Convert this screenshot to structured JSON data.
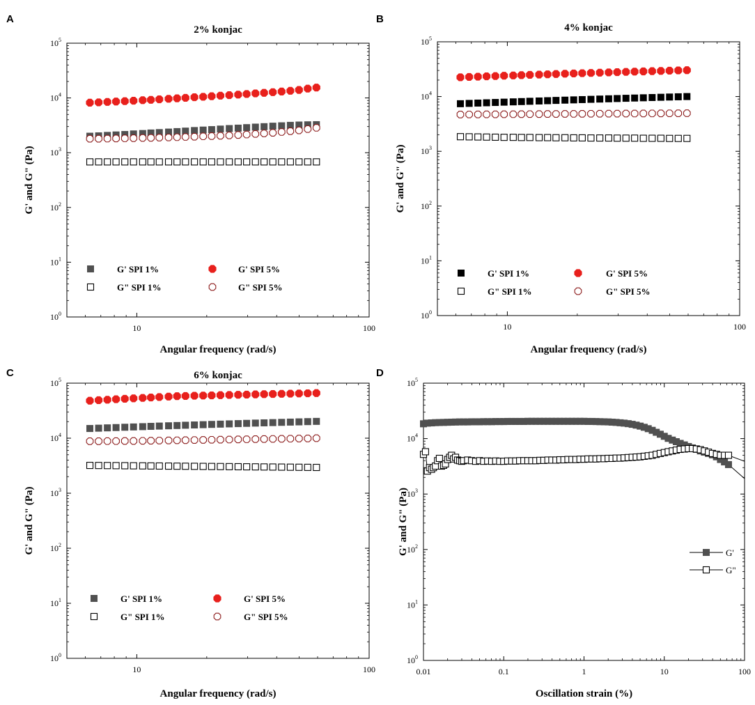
{
  "chart_data": [
    {
      "panel": "A",
      "type": "scatter",
      "title": "2% konjac",
      "xlabel": "Angular frequency (rad/s)",
      "ylabel": "G' and G\" (Pa)",
      "xscale": "log",
      "yscale": "log",
      "xlim": [
        5,
        100
      ],
      "ylim": [
        1,
        100000
      ],
      "xticks": [
        10,
        100
      ],
      "xtick_labels": [
        "10",
        "100"
      ],
      "ytick_base": "10",
      "ytick_exponents": [
        "0",
        "1",
        "2",
        "3",
        "4",
        "5"
      ],
      "legend_position": "lower-left",
      "x": [
        6.28,
        6.85,
        7.47,
        8.14,
        8.88,
        9.68,
        10.6,
        11.5,
        12.5,
        13.7,
        14.9,
        16.2,
        17.7,
        19.3,
        21.0,
        22.9,
        25.0,
        27.3,
        29.7,
        32.4,
        35.3,
        38.5,
        42.0,
        45.8,
        49.9,
        54.4,
        59.3
      ],
      "series": [
        {
          "name": "G' SPI 1%",
          "marker": "filled-square",
          "color": "#505050",
          "values": [
            2000,
            2030,
            2070,
            2110,
            2150,
            2200,
            2240,
            2290,
            2330,
            2380,
            2430,
            2480,
            2540,
            2590,
            2640,
            2700,
            2760,
            2810,
            2870,
            2930,
            2990,
            3050,
            3100,
            3160,
            3200,
            3230,
            3250
          ]
        },
        {
          "name": "G\" SPI 1%",
          "marker": "open-square",
          "color": "#000000",
          "values": [
            680,
            680,
            680,
            680,
            680,
            680,
            680,
            680,
            680,
            680,
            680,
            680,
            680,
            680,
            680,
            680,
            680,
            680,
            680,
            680,
            680,
            680,
            680,
            680,
            680,
            680,
            680
          ]
        },
        {
          "name": "G' SPI 5%",
          "marker": "filled-circle",
          "color": "#e8201c",
          "values": [
            8200,
            8300,
            8450,
            8600,
            8750,
            8900,
            9100,
            9250,
            9450,
            9650,
            9850,
            10050,
            10300,
            10500,
            10750,
            11000,
            11250,
            11500,
            11800,
            12100,
            12400,
            12750,
            13100,
            13500,
            14000,
            14800,
            15500
          ]
        },
        {
          "name": "G\" SPI 5%",
          "marker": "open-diamond",
          "color": "#8b1a1a",
          "values": [
            1800,
            1800,
            1810,
            1820,
            1830,
            1840,
            1860,
            1870,
            1890,
            1900,
            1920,
            1940,
            1960,
            1990,
            2010,
            2040,
            2070,
            2110,
            2150,
            2200,
            2250,
            2310,
            2390,
            2470,
            2560,
            2700,
            2850
          ]
        }
      ]
    },
    {
      "panel": "B",
      "type": "scatter",
      "title": "4% konjac",
      "xlabel": "Angular frequency (rad/s)",
      "ylabel": "G' and G\" (Pa)",
      "xscale": "log",
      "yscale": "log",
      "xlim": [
        5,
        100
      ],
      "ylim": [
        1,
        100000
      ],
      "xticks": [
        10,
        100
      ],
      "xtick_labels": [
        "10",
        "100"
      ],
      "ytick_base": "10",
      "ytick_exponents": [
        "0",
        "1",
        "2",
        "3",
        "4",
        "5"
      ],
      "legend_position": "lower-left",
      "x": [
        6.28,
        6.85,
        7.47,
        8.14,
        8.88,
        9.68,
        10.6,
        11.5,
        12.5,
        13.7,
        14.9,
        16.2,
        17.7,
        19.3,
        21.0,
        22.9,
        25.0,
        27.3,
        29.7,
        32.4,
        35.3,
        38.5,
        42.0,
        45.8,
        49.9,
        54.4,
        59.3
      ],
      "series": [
        {
          "name": "G' SPI 1%",
          "marker": "filled-square",
          "color": "#000000",
          "values": [
            7400,
            7500,
            7600,
            7700,
            7800,
            7900,
            8000,
            8100,
            8200,
            8300,
            8400,
            8500,
            8600,
            8700,
            8800,
            8900,
            9000,
            9100,
            9200,
            9300,
            9400,
            9500,
            9600,
            9700,
            9800,
            9900,
            10000
          ]
        },
        {
          "name": "G\" SPI 1%",
          "marker": "open-square",
          "color": "#000000",
          "values": [
            1850,
            1840,
            1830,
            1820,
            1810,
            1800,
            1800,
            1790,
            1790,
            1780,
            1780,
            1770,
            1770,
            1760,
            1760,
            1750,
            1750,
            1750,
            1740,
            1740,
            1740,
            1730,
            1730,
            1730,
            1720,
            1720,
            1720
          ]
        },
        {
          "name": "G' SPI 5%",
          "marker": "filled-circle",
          "color": "#e8201c",
          "values": [
            22500,
            22800,
            23100,
            23400,
            23700,
            24000,
            24300,
            24600,
            24900,
            25200,
            25500,
            25800,
            26100,
            26400,
            26700,
            27000,
            27300,
            27600,
            27900,
            28200,
            28500,
            28800,
            29100,
            29400,
            29700,
            30000,
            30300
          ]
        },
        {
          "name": "G\" SPI 5%",
          "marker": "open-diamond",
          "color": "#8b1a1a",
          "values": [
            4700,
            4710,
            4720,
            4730,
            4740,
            4750,
            4760,
            4770,
            4780,
            4790,
            4800,
            4810,
            4820,
            4830,
            4840,
            4850,
            4860,
            4870,
            4880,
            4890,
            4900,
            4910,
            4920,
            4930,
            4940,
            4950,
            4960
          ]
        }
      ]
    },
    {
      "panel": "C",
      "type": "scatter",
      "title": "6% konjac",
      "xlabel": "Angular frequency (rad/s)",
      "ylabel": "G' and G\" (Pa)",
      "xscale": "log",
      "yscale": "log",
      "xlim": [
        5,
        100
      ],
      "ylim": [
        1,
        100000
      ],
      "xticks": [
        10,
        100
      ],
      "xtick_labels": [
        "10",
        "100"
      ],
      "ytick_base": "10",
      "ytick_exponents": [
        "0",
        "1",
        "2",
        "3",
        "4",
        "5"
      ],
      "legend_position": "lower-left",
      "x": [
        6.28,
        6.85,
        7.47,
        8.14,
        8.88,
        9.68,
        10.6,
        11.5,
        12.5,
        13.7,
        14.9,
        16.2,
        17.7,
        19.3,
        21.0,
        22.9,
        25.0,
        27.3,
        29.7,
        32.4,
        35.3,
        38.5,
        42.0,
        45.8,
        49.9,
        54.4,
        59.3
      ],
      "series": [
        {
          "name": "G' SPI 1%",
          "marker": "filled-square",
          "color": "#505050",
          "values": [
            15000,
            15200,
            15400,
            15600,
            15800,
            16000,
            16200,
            16400,
            16600,
            16800,
            17000,
            17200,
            17400,
            17600,
            17800,
            18000,
            18200,
            18400,
            18600,
            18800,
            19000,
            19200,
            19400,
            19600,
            19800,
            20000,
            20200
          ]
        },
        {
          "name": "G\" SPI 1%",
          "marker": "open-square",
          "color": "#000000",
          "values": [
            3200,
            3190,
            3180,
            3170,
            3160,
            3150,
            3140,
            3130,
            3120,
            3110,
            3100,
            3090,
            3080,
            3070,
            3060,
            3050,
            3040,
            3030,
            3020,
            3010,
            3000,
            2990,
            2980,
            2970,
            2960,
            2950,
            2940
          ]
        },
        {
          "name": "G' SPI 5%",
          "marker": "filled-circle",
          "color": "#e8201c",
          "values": [
            48000,
            49000,
            50000,
            51000,
            52000,
            53000,
            54000,
            55000,
            56000,
            57000,
            58000,
            58500,
            59000,
            59500,
            60000,
            60500,
            61000,
            61500,
            62000,
            62500,
            63000,
            63500,
            64000,
            64500,
            65000,
            65500,
            66000
          ]
        },
        {
          "name": "G\" SPI 5%",
          "marker": "open-diamond",
          "color": "#8b1a1a",
          "values": [
            8800,
            8800,
            8850,
            8850,
            8900,
            8900,
            8950,
            9000,
            9050,
            9100,
            9150,
            9200,
            9250,
            9300,
            9350,
            9400,
            9450,
            9500,
            9550,
            9600,
            9650,
            9700,
            9750,
            9800,
            9850,
            9900,
            10000
          ]
        }
      ]
    },
    {
      "panel": "D",
      "type": "line",
      "title": "",
      "xlabel": "Oscillation strain (%)",
      "ylabel": "G' and G\" (Pa)",
      "xscale": "log",
      "yscale": "log",
      "xlim": [
        0.01,
        100
      ],
      "ylim": [
        1,
        100000
      ],
      "xticks": [
        0.01,
        0.1,
        1,
        10,
        100
      ],
      "xtick_labels": [
        "0.01",
        "0.1",
        "1",
        "10",
        "100"
      ],
      "ytick_base": "10",
      "ytick_exponents": [
        "0",
        "1",
        "2",
        "3",
        "4",
        "5"
      ],
      "legend_position": "right",
      "series": [
        {
          "name": "G'",
          "marker": "filled-square",
          "color": "#505050",
          "x": [
            0.01,
            0.0112,
            0.0126,
            0.0141,
            0.0158,
            0.0178,
            0.02,
            0.0224,
            0.0251,
            0.0282,
            0.0316,
            0.0355,
            0.0398,
            0.0447,
            0.0501,
            0.0562,
            0.0631,
            0.0708,
            0.0794,
            0.0891,
            0.1,
            0.112,
            0.126,
            0.141,
            0.158,
            0.178,
            0.2,
            0.224,
            0.251,
            0.282,
            0.316,
            0.355,
            0.398,
            0.447,
            0.501,
            0.562,
            0.631,
            0.708,
            0.794,
            0.891,
            1.0,
            1.12,
            1.26,
            1.41,
            1.58,
            1.78,
            2.0,
            2.24,
            2.51,
            2.82,
            3.16,
            3.55,
            3.98,
            4.47,
            5.01,
            5.62,
            6.31,
            7.08,
            7.94,
            8.91,
            10.0,
            11.2,
            12.6,
            14.1,
            15.8,
            17.8,
            20.0,
            22.4,
            25.1,
            28.2,
            31.6,
            35.5,
            39.8,
            44.7,
            50.1,
            56.2,
            63.1
          ],
          "values": [
            18500,
            19000,
            19200,
            19400,
            19500,
            19600,
            19700,
            19800,
            19900,
            20000,
            20000,
            20000,
            20100,
            20100,
            20100,
            20200,
            20200,
            20200,
            20300,
            20300,
            20300,
            20400,
            20400,
            20400,
            20400,
            20400,
            20500,
            20500,
            20500,
            20500,
            20500,
            20500,
            20500,
            20500,
            20500,
            20500,
            20500,
            20500,
            20500,
            20500,
            20500,
            20400,
            20400,
            20300,
            20200,
            20100,
            20000,
            19800,
            19600,
            19300,
            19000,
            18600,
            18100,
            17500,
            16800,
            16000,
            15100,
            14100,
            13000,
            12000,
            11000,
            10100,
            9400,
            8800,
            8200,
            7700,
            7200,
            6800,
            6400,
            6000,
            5700,
            5400,
            5100,
            4700,
            4200,
            3800,
            3400
          ],
          "line_extension": {
            "x": [
              63.1,
              100
            ],
            "values": [
              3400,
              1900
            ]
          }
        },
        {
          "name": "G\"",
          "marker": "open-square",
          "color": "#000000",
          "x": [
            0.01,
            0.0106,
            0.0112,
            0.0119,
            0.0126,
            0.0133,
            0.0141,
            0.015,
            0.0158,
            0.0168,
            0.0178,
            0.0188,
            0.02,
            0.0212,
            0.0224,
            0.0237,
            0.0251,
            0.0266,
            0.0282,
            0.0299,
            0.0316,
            0.0355,
            0.0398,
            0.0447,
            0.0501,
            0.0562,
            0.0631,
            0.0708,
            0.0794,
            0.0891,
            0.1,
            0.112,
            0.126,
            0.141,
            0.158,
            0.178,
            0.2,
            0.224,
            0.251,
            0.282,
            0.316,
            0.355,
            0.398,
            0.447,
            0.501,
            0.562,
            0.631,
            0.708,
            0.794,
            0.891,
            1.0,
            1.12,
            1.26,
            1.41,
            1.58,
            1.78,
            2.0,
            2.24,
            2.51,
            2.82,
            3.16,
            3.55,
            3.98,
            4.47,
            5.01,
            5.62,
            6.31,
            7.08,
            7.94,
            8.91,
            10.0,
            11.2,
            12.6,
            14.1,
            15.8,
            17.8,
            20.0,
            22.4,
            25.1,
            28.2,
            31.6,
            35.5,
            39.8,
            44.7,
            50.1,
            56.2,
            63.1
          ],
          "values": [
            5200,
            5800,
            2600,
            3000,
            2800,
            3000,
            3200,
            4000,
            4400,
            3200,
            3300,
            3500,
            4200,
            4600,
            5000,
            4300,
            4600,
            4100,
            4000,
            3900,
            4000,
            4100,
            4000,
            3900,
            4000,
            3900,
            3950,
            3900,
            3950,
            3900,
            3900,
            3950,
            3950,
            3950,
            4000,
            4000,
            4000,
            4000,
            4000,
            4050,
            4050,
            4100,
            4100,
            4100,
            4150,
            4150,
            4200,
            4200,
            4200,
            4250,
            4250,
            4300,
            4300,
            4300,
            4350,
            4350,
            4400,
            4400,
            4450,
            4450,
            4500,
            4550,
            4600,
            4650,
            4700,
            4800,
            4900,
            5000,
            5200,
            5400,
            5600,
            5800,
            6000,
            6200,
            6400,
            6500,
            6600,
            6600,
            6500,
            6300,
            6000,
            5700,
            5400,
            5200,
            5000,
            5000,
            5000
          ],
          "line_extension": {
            "x": [
              63.1,
              100
            ],
            "values": [
              5000,
              3900
            ]
          }
        }
      ]
    }
  ],
  "panel_letters": [
    "A",
    "B",
    "C",
    "D"
  ]
}
